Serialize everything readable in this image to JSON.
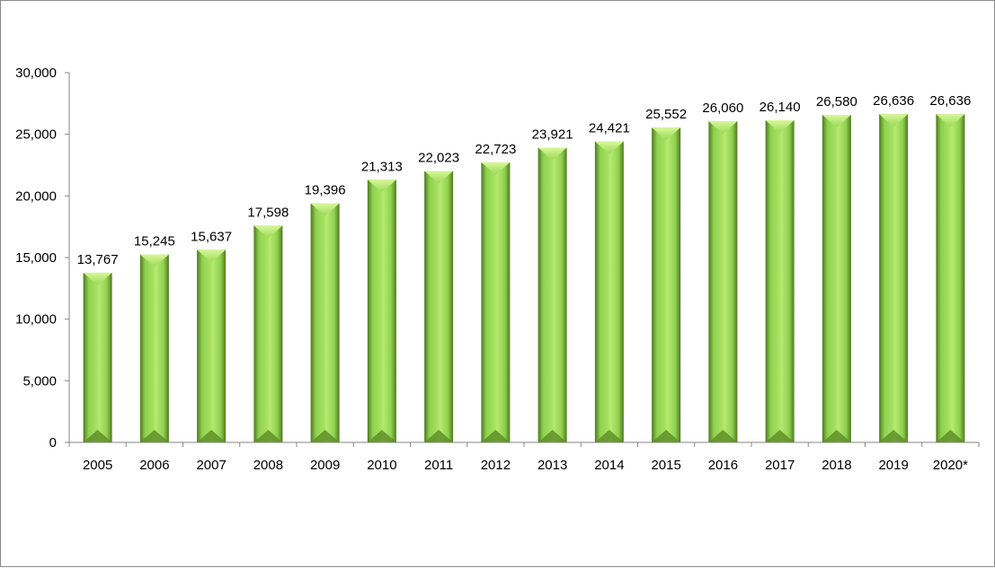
{
  "chart_data": {
    "type": "bar",
    "title": "",
    "xlabel": "",
    "ylabel": "",
    "categories": [
      "2005",
      "2006",
      "2007",
      "2008",
      "2009",
      "2010",
      "2011",
      "2012",
      "2013",
      "2014",
      "2015",
      "2016",
      "2017",
      "2018",
      "2019",
      "2020*"
    ],
    "values": [
      13767,
      15245,
      15637,
      17598,
      19396,
      21313,
      22023,
      22723,
      23921,
      24421,
      25552,
      26060,
      26140,
      26580,
      26636,
      26636
    ],
    "value_labels": [
      "13,767",
      "15,245",
      "15,637",
      "17,598",
      "19,396",
      "21,313",
      "22,023",
      "22,723",
      "23,921",
      "24,421",
      "25,552",
      "26,060",
      "26,140",
      "26,580",
      "26,636",
      "26,636"
    ],
    "ylim": [
      0,
      30000
    ],
    "yticks": [
      0,
      5000,
      10000,
      15000,
      20000,
      25000,
      30000
    ],
    "ytick_labels": [
      "0",
      "5,000",
      "10,000",
      "15,000",
      "20,000",
      "25,000",
      "30,000"
    ],
    "grid": false,
    "legend": "none",
    "bar_color": "#8fd14f",
    "bar_highlight": "#c6f07a",
    "bar_shadow": "#4f7a1f"
  }
}
